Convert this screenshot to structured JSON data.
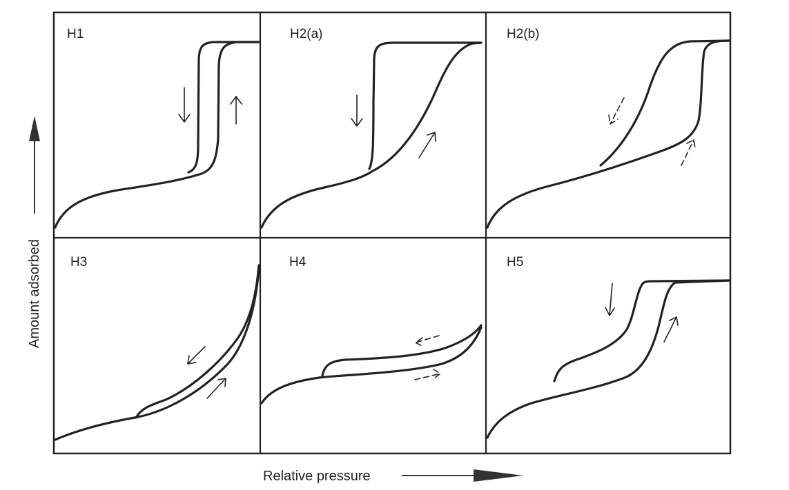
{
  "figure": {
    "y_axis_label": "Amount adsorbed",
    "x_axis_label": "Relative pressure"
  },
  "panels": [
    {
      "id": "H1",
      "label": "H1"
    },
    {
      "id": "H2a",
      "label": "H2(a)"
    },
    {
      "id": "H2b",
      "label": "H2(b)"
    },
    {
      "id": "H3",
      "label": "H3"
    },
    {
      "id": "H4",
      "label": "H4"
    },
    {
      "id": "H5",
      "label": "H5"
    }
  ]
}
